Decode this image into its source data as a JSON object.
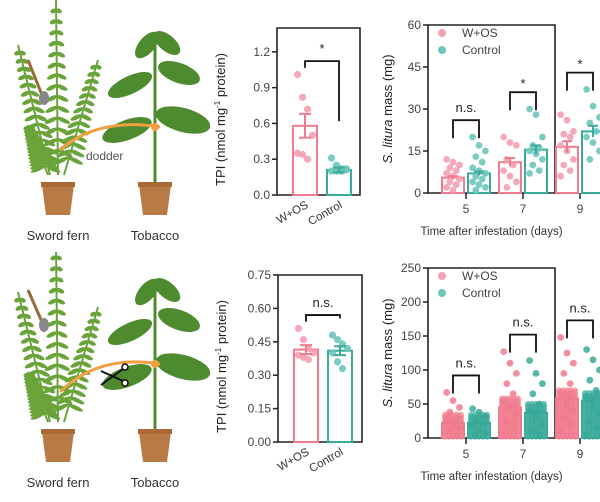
{
  "colors": {
    "wos": "#f07b8e",
    "wos_dot": "#f4a0b0",
    "control": "#3aaa9a",
    "control_dot": "#6cc7bb",
    "axis": "#222222",
    "fern": "#6aa33a",
    "tobacco": "#4e8a2e",
    "pot": "#b97a45",
    "dodder": "#f0a040"
  },
  "illustrations": [
    {
      "name": "connected",
      "left_label": "Sword fern",
      "right_label": "Tobacco",
      "link_label": "dodder",
      "cut": false
    },
    {
      "name": "severed",
      "left_label": "Sword fern",
      "right_label": "Tobacco",
      "link_label": "",
      "cut": true
    }
  ],
  "chart_data": [
    {
      "id": "tpi-connected",
      "type": "bar",
      "title": "",
      "ylabel_main": "TPI (nmol mg",
      "ylabel_sup": "-1",
      "ylabel_tail": " protein)",
      "xlabel": "",
      "categories": [
        "W+OS",
        "Control"
      ],
      "values": [
        0.58,
        0.21
      ],
      "sem": [
        0.1,
        0.02
      ],
      "points": [
        [
          1.01,
          0.82,
          0.72,
          0.5,
          0.35,
          0.34,
          0.3
        ],
        [
          0.31,
          0.25,
          0.22,
          0.21,
          0.2,
          0.2,
          0.2,
          0.22
        ]
      ],
      "ylim": [
        0,
        1.4
      ],
      "yticks": [
        0.0,
        0.3,
        0.6,
        0.9,
        1.2
      ],
      "ytick_labels": [
        "0.0",
        "0.3",
        "0.6",
        "0.9",
        "1.2"
      ],
      "significance": [
        "*"
      ]
    },
    {
      "id": "mass-connected",
      "type": "bar",
      "title": "",
      "ylabel_italic": "S. litura",
      "ylabel_tail": " mass (mg)",
      "xlabel": "Time after infestation (days)",
      "categories": [
        "5",
        "7",
        "9"
      ],
      "legend": [
        "W+OS",
        "Control"
      ],
      "legend_position": "top-left",
      "series": [
        {
          "name": "W+OS",
          "values": [
            5.5,
            11,
            16.5
          ],
          "sem": [
            0.5,
            1.5,
            2
          ]
        },
        {
          "name": "Control",
          "values": [
            7,
            15.5,
            22
          ],
          "sem": [
            0.7,
            1.5,
            2
          ]
        }
      ],
      "points": [
        [
          [
            12,
            11,
            10,
            9,
            8,
            7,
            6,
            5,
            4,
            3,
            2,
            1
          ],
          [
            20,
            17,
            15,
            13,
            11,
            9,
            8,
            7,
            6,
            5,
            4,
            3,
            2,
            1
          ]
        ],
        [
          [
            20,
            18,
            17,
            12,
            10,
            8,
            6,
            4,
            2
          ],
          [
            30,
            28,
            20,
            17,
            16,
            15,
            14,
            12,
            10,
            8,
            7
          ]
        ],
        [
          [
            28,
            26,
            22,
            21,
            20,
            17,
            15,
            12,
            10,
            8,
            6
          ],
          [
            37,
            31,
            27,
            25,
            22,
            20,
            18,
            15,
            12
          ]
        ]
      ],
      "ylim": [
        0,
        60
      ],
      "yticks": [
        0,
        15,
        30,
        45,
        60
      ],
      "ytick_labels": [
        "0",
        "15",
        "30",
        "45",
        "60"
      ],
      "significance": [
        "n.s.",
        "*",
        "*"
      ]
    },
    {
      "id": "tpi-severed",
      "type": "bar",
      "title": "",
      "ylabel_main": "TPI (nmol mg",
      "ylabel_sup": "-1",
      "ylabel_tail": " protein)",
      "xlabel": "",
      "categories": [
        "W+OS",
        "Control"
      ],
      "values": [
        0.415,
        0.41
      ],
      "sem": [
        0.02,
        0.02
      ],
      "points": [
        [
          0.51,
          0.46,
          0.42,
          0.4,
          0.39,
          0.38,
          0.37
        ],
        [
          0.48,
          0.46,
          0.44,
          0.42,
          0.4,
          0.36,
          0.33
        ]
      ],
      "ylim": [
        0,
        0.75
      ],
      "yticks": [
        0.0,
        0.15,
        0.3,
        0.45,
        0.6,
        0.75
      ],
      "ytick_labels": [
        "0.00",
        "0.15",
        "0.30",
        "0.45",
        "0.60",
        "0.75"
      ],
      "significance": [
        "n.s."
      ]
    },
    {
      "id": "mass-severed",
      "type": "bar",
      "title": "",
      "ylabel_italic": "S. litura",
      "ylabel_tail": " mass (mg)",
      "xlabel": "Time after infestation (days)",
      "categories": [
        "5",
        "7",
        "9"
      ],
      "legend": [
        "W+OS",
        "Control"
      ],
      "legend_position": "top-left",
      "series": [
        {
          "name": "W+OS",
          "values": [
            22,
            45,
            58
          ],
          "sem": [
            2,
            4,
            5
          ]
        },
        {
          "name": "Control",
          "values": [
            22,
            37,
            55
          ],
          "sem": [
            2,
            4,
            5
          ]
        }
      ],
      "points": [
        [
          [
            67,
            55,
            45,
            38,
            30,
            25,
            20,
            15,
            10,
            5
          ],
          [
            43,
            38,
            32,
            27,
            22,
            17,
            12,
            7,
            3
          ]
        ],
        [
          [
            127,
            110,
            95,
            80,
            65,
            55,
            45,
            35,
            25,
            15,
            8
          ],
          [
            114,
            95,
            80,
            65,
            50,
            40,
            30,
            20,
            10,
            5
          ]
        ],
        [
          [
            148,
            125,
            110,
            95,
            80,
            65,
            50,
            40,
            30,
            20,
            10
          ],
          [
            130,
            115,
            100,
            85,
            70,
            60,
            45,
            35,
            25,
            15,
            5
          ]
        ]
      ],
      "ylim": [
        0,
        250
      ],
      "yticks": [
        0,
        50,
        100,
        150,
        200,
        250
      ],
      "ytick_labels": [
        "0",
        "50",
        "100",
        "150",
        "200",
        "250"
      ],
      "significance": [
        "n.s.",
        "n.s.",
        "n.s."
      ]
    }
  ]
}
